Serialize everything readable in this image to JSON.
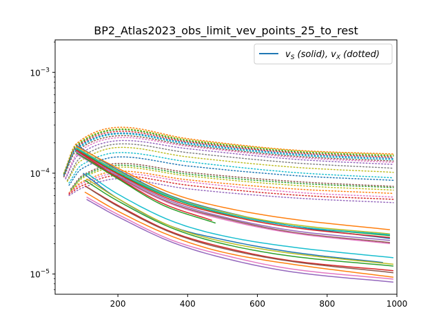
{
  "chart_data": {
    "type": "line",
    "title": "BP2_Atlas2023_obs_limit_vev_points_25_to_rest",
    "xlabel": "",
    "ylabel": "",
    "xlim": [
      20,
      1000
    ],
    "ylim": [
      6.3e-06,
      0.0021
    ],
    "yscale": "log",
    "grid": false,
    "x_ticks": [
      {
        "value": 200,
        "label": "200"
      },
      {
        "value": 400,
        "label": "400"
      },
      {
        "value": 600,
        "label": "600"
      },
      {
        "value": 800,
        "label": "800"
      },
      {
        "value": 1000,
        "label": "1000"
      }
    ],
    "y_ticks": [
      {
        "base": "10",
        "exp": "−5",
        "value": 1e-05
      },
      {
        "base": "10",
        "exp": "−4",
        "value": 0.0001
      },
      {
        "base": "10",
        "exp": "−3",
        "value": 0.001
      }
    ],
    "legend": {
      "placement": "top-right",
      "color": "#1f77b4",
      "parts": [
        {
          "text": "v",
          "style": "italic"
        },
        {
          "text": "S",
          "style": "sub"
        },
        {
          "text": " (solid), ",
          "style": "italic"
        },
        {
          "text": "v",
          "style": "italic"
        },
        {
          "text": "X",
          "style": "sub"
        },
        {
          "text": " (dotted)",
          "style": "italic"
        }
      ]
    },
    "series_solid": [
      {
        "color": "#1f77b4",
        "x": [
          80,
          200,
          350,
          500,
          700,
          980
        ],
        "y": [
          0.00019,
          0.000108,
          6e-05,
          4.2e-05,
          3e-05,
          2.25e-05
        ]
      },
      {
        "color": "#ff7f0e",
        "x": [
          80,
          200,
          350,
          500,
          700,
          980
        ],
        "y": [
          0.000185,
          0.000112,
          6.4e-05,
          4.6e-05,
          3.5e-05,
          2.75e-05
        ]
      },
      {
        "color": "#2ca02c",
        "x": [
          80,
          200,
          350,
          500,
          700,
          980
        ],
        "y": [
          0.000175,
          0.0001,
          5.7e-05,
          4e-05,
          3e-05,
          2.4e-05
        ]
      },
      {
        "color": "#d62728",
        "x": [
          80,
          200,
          350,
          500,
          700,
          980
        ],
        "y": [
          0.00017,
          9.8e-05,
          5.5e-05,
          3.9e-05,
          2.9e-05,
          2.3e-05
        ]
      },
      {
        "color": "#9467bd",
        "x": [
          80,
          200,
          350,
          500,
          700,
          980
        ],
        "y": [
          0.000165,
          9.5e-05,
          5.3e-05,
          3.7e-05,
          2.7e-05,
          2.15e-05
        ]
      },
      {
        "color": "#8c564b",
        "x": [
          80,
          200,
          350,
          500,
          700,
          980
        ],
        "y": [
          0.00016,
          9.2e-05,
          5.1e-05,
          3.6e-05,
          2.6e-05,
          2.05e-05
        ]
      },
      {
        "color": "#e377c2",
        "x": [
          80,
          200,
          350,
          500,
          700,
          980
        ],
        "y": [
          0.000155,
          9e-05,
          5e-05,
          3.5e-05,
          2.55e-05,
          2e-05
        ]
      },
      {
        "color": "#bcbd22",
        "x": [
          80,
          200,
          350,
          500,
          700,
          980
        ],
        "y": [
          0.00018,
          0.000105,
          5.9e-05,
          4.15e-05,
          3.1e-05,
          2.5e-05
        ]
      },
      {
        "color": "#17becf",
        "x": [
          80,
          200,
          350,
          500,
          700,
          980
        ],
        "y": [
          0.000178,
          0.000103,
          5.8e-05,
          4.05e-05,
          3e-05,
          2.45e-05
        ]
      },
      {
        "color": "#1f77b4",
        "x": [
          100,
          200,
          350,
          500,
          700,
          960
        ],
        "y": [
          0.0001,
          5.6e-05,
          3e-05,
          2.2e-05,
          1.65e-05,
          1.3e-05
        ]
      },
      {
        "color": "#ff7f0e",
        "x": [
          105,
          200,
          350,
          500,
          700,
          990
        ],
        "y": [
          6.5e-05,
          4.2e-05,
          2.4e-05,
          1.65e-05,
          1.25e-05,
          9.3e-06
        ]
      },
      {
        "color": "#2ca02c",
        "x": [
          105,
          200,
          350,
          500,
          700,
          990
        ],
        "y": [
          8.5e-05,
          5.3e-05,
          2.9e-05,
          2e-05,
          1.5e-05,
          1.2e-05
        ]
      },
      {
        "color": "#d62728",
        "x": [
          105,
          200,
          350,
          500,
          700,
          990
        ],
        "y": [
          7.5e-05,
          4.8e-05,
          2.65e-05,
          1.85e-05,
          1.35e-05,
          1.08e-05
        ]
      },
      {
        "color": "#9467bd",
        "x": [
          110,
          200,
          350,
          500,
          700,
          990
        ],
        "y": [
          5.5e-05,
          3.7e-05,
          2.1e-05,
          1.45e-05,
          1.05e-05,
          8.3e-06
        ]
      },
      {
        "color": "#8c564b",
        "x": [
          110,
          200,
          350,
          500,
          700,
          990
        ],
        "y": [
          7.3e-05,
          4.7e-05,
          2.6e-05,
          1.8e-05,
          1.33e-05,
          1.03e-05
        ]
      },
      {
        "color": "#e377c2",
        "x": [
          110,
          200,
          350,
          500,
          700,
          990
        ],
        "y": [
          5.8e-05,
          3.9e-05,
          2.2e-05,
          1.55e-05,
          1.12e-05,
          8.9e-06
        ]
      },
      {
        "color": "#bcbd22",
        "x": [
          110,
          200,
          350,
          500,
          700,
          990
        ],
        "y": [
          8.8e-05,
          5.6e-05,
          3e-05,
          2.1e-05,
          1.6e-05,
          1.25e-05
        ]
      },
      {
        "color": "#17becf",
        "x": [
          110,
          200,
          350,
          500,
          700,
          990
        ],
        "y": [
          0.0001,
          6.2e-05,
          3.4e-05,
          2.4e-05,
          1.85e-05,
          1.45e-05
        ]
      },
      {
        "color": "#d62728",
        "x": [
          80,
          200,
          330,
          470
        ],
        "y": [
          0.00017,
          9e-05,
          5e-05,
          3.4e-05
        ]
      },
      {
        "color": "#2ca02c",
        "x": [
          80,
          200,
          330,
          480
        ],
        "y": [
          0.00016,
          8.8e-05,
          4.8e-05,
          3.2e-05
        ]
      }
    ],
    "series_dotted": [
      {
        "color": "#ff7f0e",
        "x": [
          45,
          80,
          200,
          400,
          700,
          990
        ],
        "y": [
          0.0001,
          0.000195,
          0.000285,
          0.00022,
          0.00017,
          0.000155
        ]
      },
      {
        "color": "#bcbd22",
        "x": [
          45,
          80,
          200,
          400,
          700,
          990
        ],
        "y": [
          0.0001,
          0.00019,
          0.000275,
          0.000215,
          0.000168,
          0.000152
        ]
      },
      {
        "color": "#2ca02c",
        "x": [
          45,
          80,
          200,
          400,
          700,
          990
        ],
        "y": [
          9.8e-05,
          0.000185,
          0.00027,
          0.00021,
          0.000164,
          0.000148
        ]
      },
      {
        "color": "#d62728",
        "x": [
          45,
          80,
          200,
          400,
          700,
          990
        ],
        "y": [
          9.6e-05,
          0.00018,
          0.00026,
          0.000205,
          0.00016,
          0.000144
        ]
      },
      {
        "color": "#1f77b4",
        "x": [
          45,
          80,
          200,
          400,
          700,
          990
        ],
        "y": [
          9.5e-05,
          0.000175,
          0.00025,
          0.0002,
          0.000156,
          0.00014
        ]
      },
      {
        "color": "#17becf",
        "x": [
          45,
          80,
          200,
          400,
          700,
          990
        ],
        "y": [
          9.3e-05,
          0.00017,
          0.000245,
          0.000195,
          0.000152,
          0.000136
        ]
      },
      {
        "color": "#8c564b",
        "x": [
          45,
          80,
          200,
          400,
          700,
          990
        ],
        "y": [
          9.2e-05,
          0.000165,
          0.000235,
          0.00019,
          0.000148,
          0.000132
        ]
      },
      {
        "color": "#e377c2",
        "x": [
          50,
          85,
          200,
          400,
          700,
          990
        ],
        "y": [
          9e-05,
          0.00016,
          0.000225,
          0.000185,
          0.000144,
          0.000128
        ]
      },
      {
        "color": "#9467bd",
        "x": [
          50,
          85,
          200,
          400,
          700,
          990
        ],
        "y": [
          8.8e-05,
          0.00015,
          0.00021,
          0.000175,
          0.000138,
          0.000122
        ]
      },
      {
        "color": "#7f7f7f",
        "x": [
          55,
          90,
          200,
          400,
          700,
          990
        ],
        "y": [
          8.5e-05,
          0.00014,
          0.000195,
          0.00016,
          0.000127,
          0.000112
        ]
      },
      {
        "color": "#bcbd22",
        "x": [
          55,
          90,
          200,
          400,
          700,
          990
        ],
        "y": [
          8.3e-05,
          0.00013,
          0.00018,
          0.000145,
          0.000115,
          0.000102
        ]
      },
      {
        "color": "#17becf",
        "x": [
          60,
          95,
          200,
          400,
          700,
          990
        ],
        "y": [
          8e-05,
          0.00012,
          0.00016,
          0.00013,
          0.000102,
          9e-05
        ]
      },
      {
        "color": "#1f77b4",
        "x": [
          60,
          95,
          200,
          400,
          700,
          990
        ],
        "y": [
          7.6e-05,
          0.00011,
          0.000145,
          0.000118,
          9.5e-05,
          8.5e-05
        ]
      },
      {
        "color": "#8c564b",
        "x": [
          65,
          100,
          200,
          400,
          700,
          990
        ],
        "y": [
          7e-05,
          9.6e-05,
          0.000125,
          0.000102,
          8.3e-05,
          7.4e-05
        ]
      },
      {
        "color": "#2ca02c",
        "x": [
          65,
          100,
          200,
          400,
          700,
          990
        ],
        "y": [
          6.8e-05,
          9.3e-05,
          0.00012,
          9.8e-05,
          8e-05,
          7.2e-05
        ]
      },
      {
        "color": "#bcbd22",
        "x": [
          65,
          100,
          200,
          400,
          700,
          990
        ],
        "y": [
          6.6e-05,
          9e-05,
          0.000115,
          9.4e-05,
          7.6e-05,
          6.8e-05
        ]
      },
      {
        "color": "#ff7f0e",
        "x": [
          60,
          100,
          200,
          400,
          700,
          990
        ],
        "y": [
          6.4e-05,
          8.3e-05,
          0.000105,
          8.6e-05,
          7e-05,
          6.3e-05
        ]
      },
      {
        "color": "#e377c2",
        "x": [
          60,
          100,
          200,
          400,
          700,
          990
        ],
        "y": [
          6.3e-05,
          8e-05,
          0.0001,
          8.2e-05,
          6.5e-05,
          5.8e-05
        ]
      },
      {
        "color": "#d62728",
        "x": [
          60,
          100,
          200,
          400,
          700,
          990
        ],
        "y": [
          6.2e-05,
          7.6e-05,
          9.5e-05,
          7.6e-05,
          6.1e-05,
          5.5e-05
        ]
      },
      {
        "color": "#9467bd",
        "x": [
          60,
          100,
          200,
          400,
          700,
          990
        ],
        "y": [
          6e-05,
          7.2e-05,
          8.8e-05,
          7e-05,
          5.7e-05,
          5.1e-05
        ]
      }
    ]
  }
}
